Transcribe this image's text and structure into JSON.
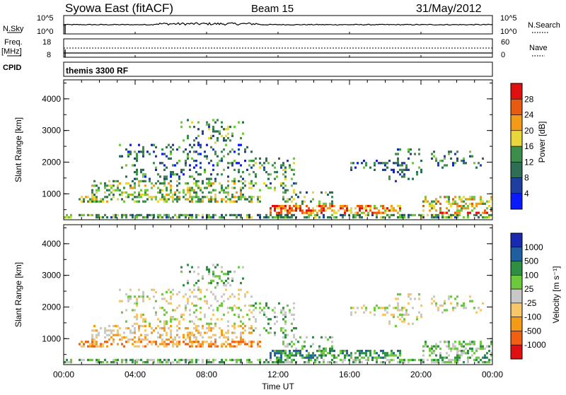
{
  "header": {
    "title": "Syowa East (fitACF)",
    "beam": "Beam 15",
    "date": "31/May/2012"
  },
  "strips": {
    "nsky_label": "N.Sky",
    "nsky_ticks": [
      "10^5",
      "10^0"
    ],
    "nsearch_label": "N.Search",
    "freq_label": "Freq.",
    "freq_unit": "[MHz]",
    "freq_ticks": [
      "18",
      "8"
    ],
    "nave_label": "Nave",
    "nave_ticks": [
      "60",
      "0"
    ],
    "cpid_label": "CPID",
    "cpid_value": "themis 3300 RF"
  },
  "colors": {
    "power": [
      "#0a1aff",
      "#1f3fa0",
      "#2e6e55",
      "#3d8e4a",
      "#6ec83e",
      "#e8d63a",
      "#f39a16",
      "#e85a10",
      "#e01010"
    ],
    "velocity": [
      "#e01010",
      "#f06010",
      "#f39a16",
      "#f7c56a",
      "#c8c8c8",
      "#6ec83e",
      "#2e8e44",
      "#1f5fa0",
      "#1a2ab0"
    ]
  },
  "chart_data": [
    {
      "type": "heatmap",
      "panel": "power",
      "xlabel": "Time UT",
      "ylabel": "Slant Range [km]",
      "x_ticks": [
        "00:00",
        "04:00",
        "08:00",
        "12:00",
        "16:00",
        "20:00",
        "00:00"
      ],
      "y_ticks": [
        "1000",
        "2000",
        "3000",
        "4000"
      ],
      "ylim": [
        180,
        4600
      ],
      "xlim_hours": [
        0,
        24
      ],
      "colorbar_label": "Power [dB]",
      "colorbar_ticks": [
        "4",
        "8",
        "12",
        "16",
        "20",
        "24",
        "28"
      ],
      "colorbar_range": [
        0,
        32
      ]
    },
    {
      "type": "heatmap",
      "panel": "velocity",
      "xlabel": "Time UT",
      "ylabel": "Slant Range [km]",
      "x_ticks": [
        "00:00",
        "04:00",
        "08:00",
        "12:00",
        "16:00",
        "20:00",
        "00:00"
      ],
      "y_ticks": [
        "1000",
        "2000",
        "3000",
        "4000"
      ],
      "ylim": [
        180,
        4600
      ],
      "xlim_hours": [
        0,
        24
      ],
      "colorbar_label": "Velocity [m s⁻¹]",
      "colorbar_ticks": [
        "1000",
        "500",
        "100",
        "25",
        "-25",
        "-100",
        "-500",
        "-1000"
      ]
    }
  ]
}
